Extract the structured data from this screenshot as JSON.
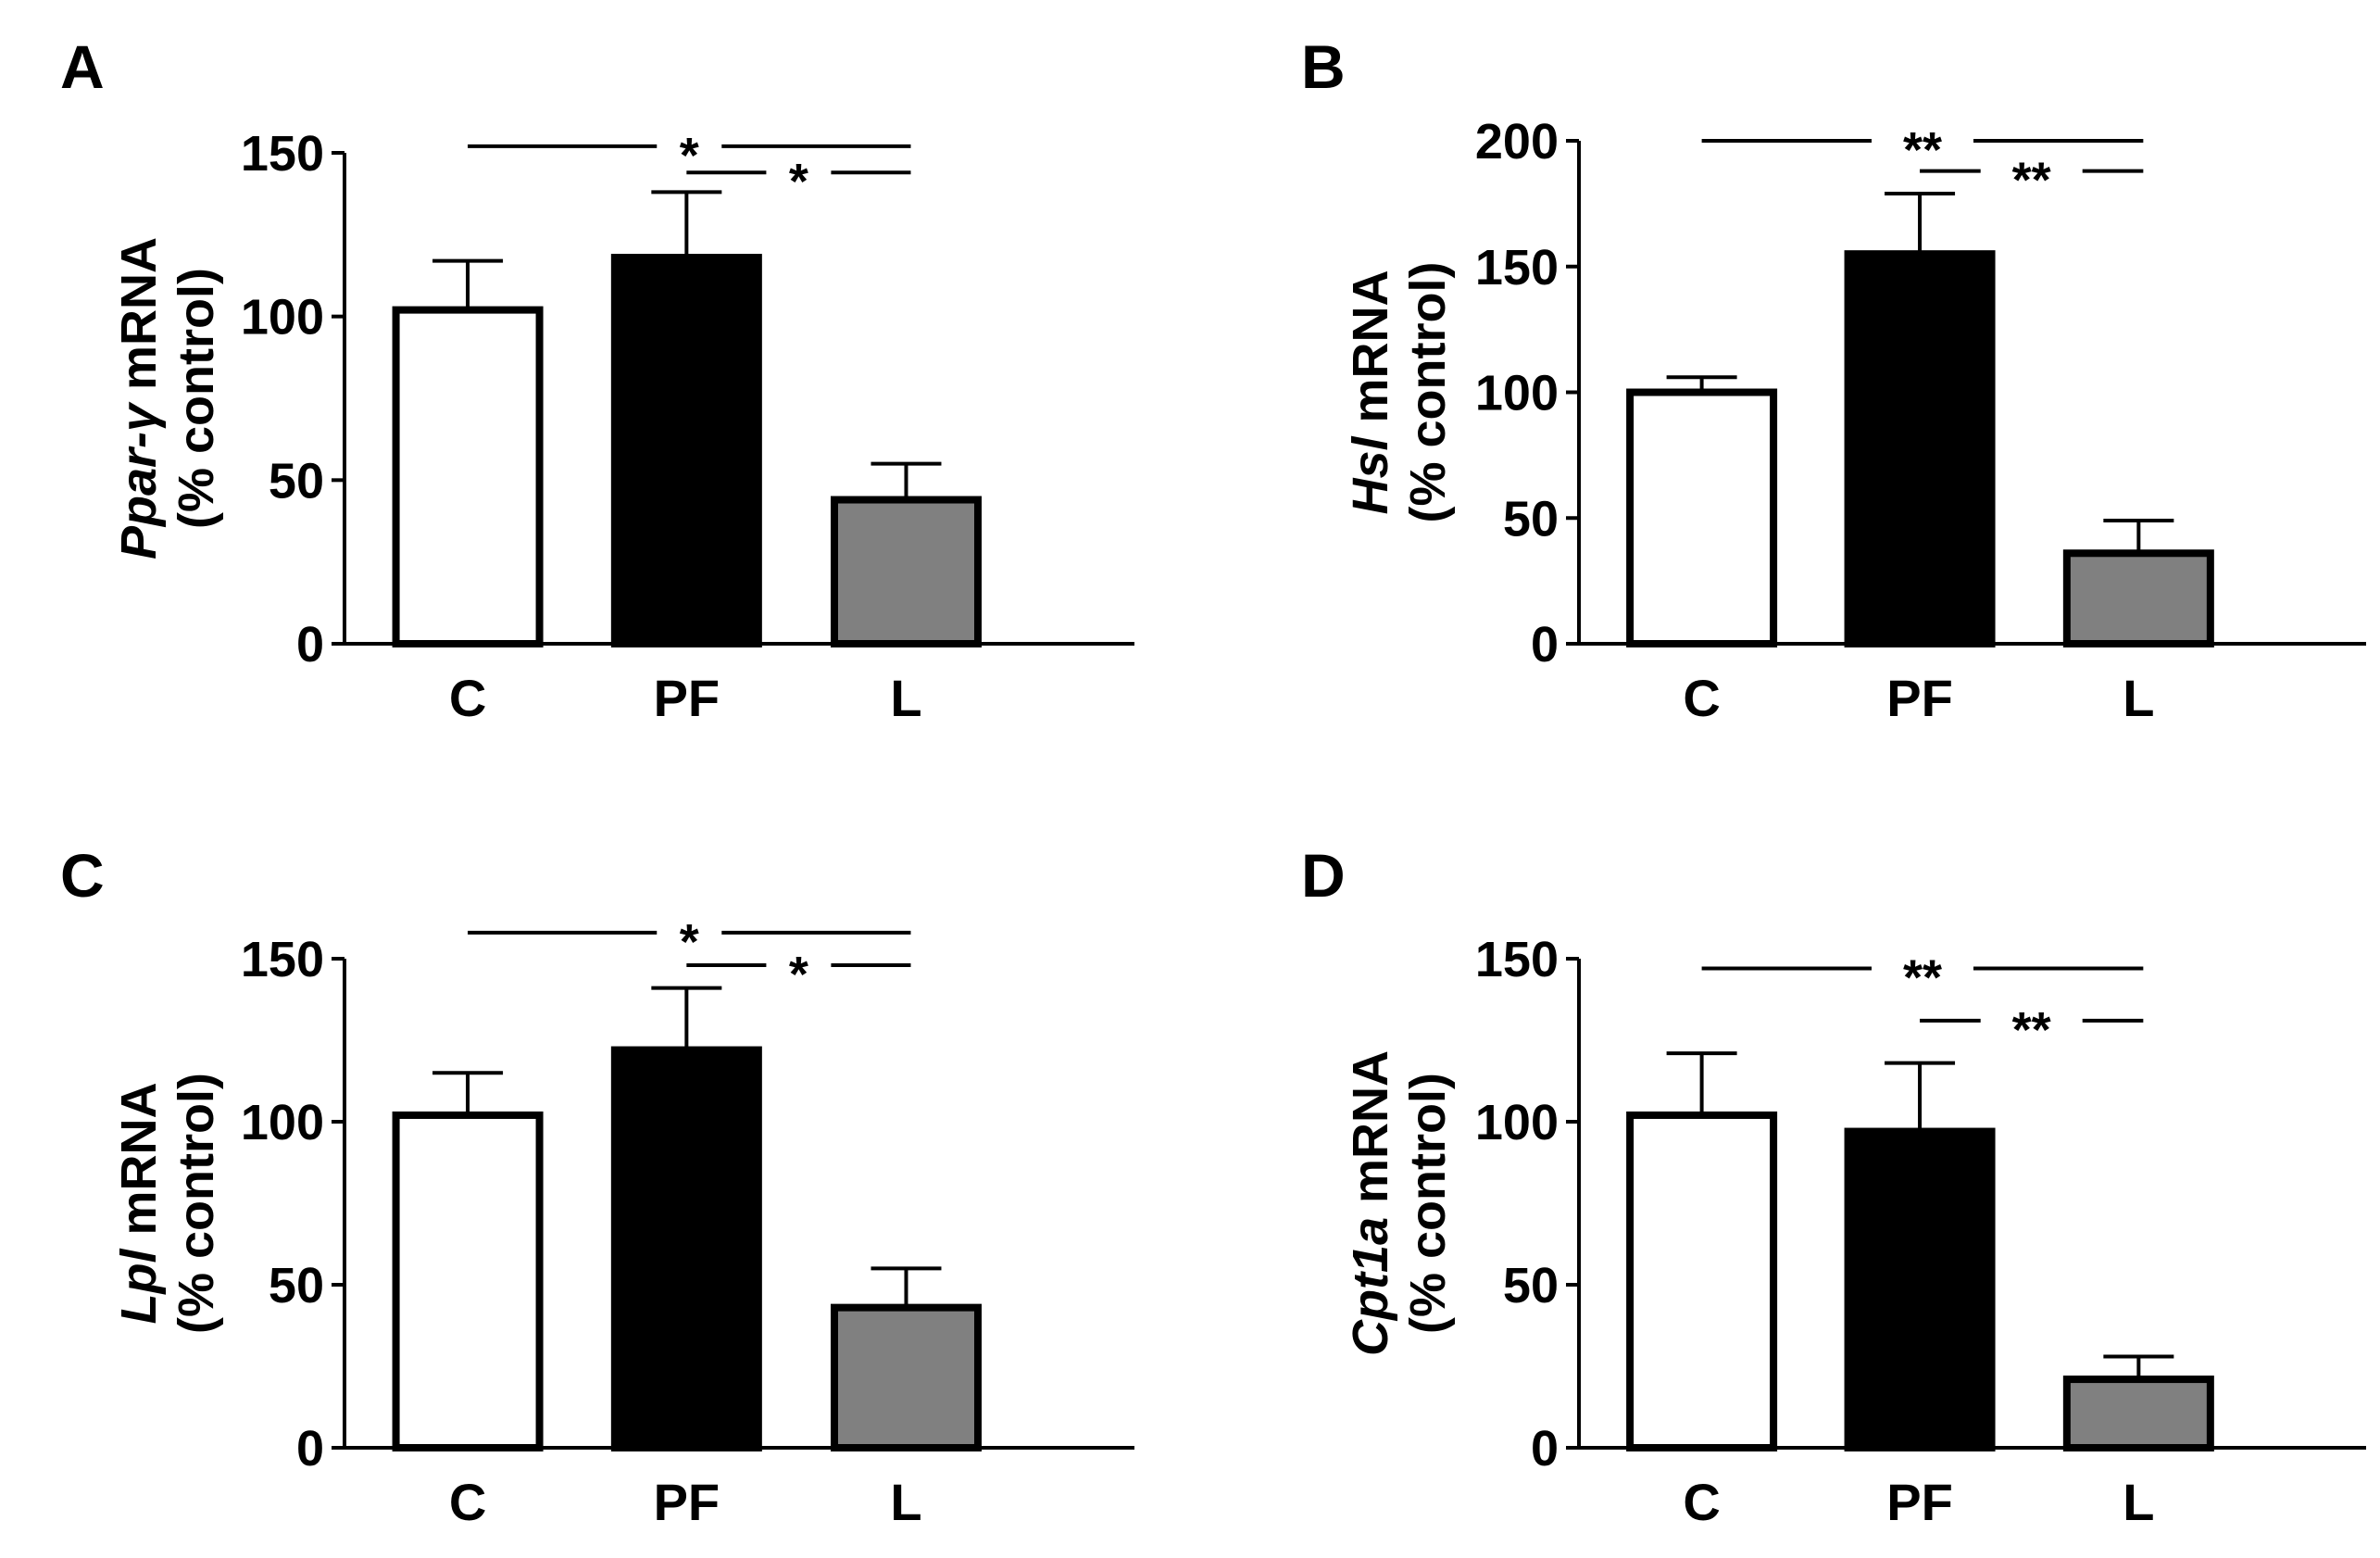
{
  "chart_data": [
    {
      "type": "bar",
      "panel_label": "A",
      "gene": "Ppar-γ",
      "ylabel_suffix": " mRNA",
      "ylabel_line2": "(% control)",
      "categories": [
        "C",
        "PF",
        "L"
      ],
      "values": [
        102,
        118,
        44
      ],
      "errors": [
        15,
        20,
        11
      ],
      "fills": [
        "#ffffff",
        "#000000",
        "#808080"
      ],
      "ylim": [
        0,
        150
      ],
      "yticks": [
        0,
        50,
        100,
        150
      ],
      "significance": [
        {
          "from": "C",
          "to": "L",
          "label": "*",
          "y": 152
        },
        {
          "from": "PF",
          "to": "L",
          "label": "*",
          "y": 144
        }
      ]
    },
    {
      "type": "bar",
      "panel_label": "B",
      "gene": "Hsl",
      "ylabel_suffix": " mRNA",
      "ylabel_line2": "(% control)",
      "categories": [
        "C",
        "PF",
        "L"
      ],
      "values": [
        100,
        155,
        36
      ],
      "errors": [
        6,
        24,
        13
      ],
      "fills": [
        "#ffffff",
        "#000000",
        "#808080"
      ],
      "ylim": [
        0,
        200
      ],
      "yticks": [
        0,
        50,
        100,
        150,
        200
      ],
      "significance": [
        {
          "from": "C",
          "to": "L",
          "label": "**",
          "y": 200
        },
        {
          "from": "PF",
          "to": "L",
          "label": "**",
          "y": 188
        }
      ]
    },
    {
      "type": "bar",
      "panel_label": "C",
      "gene": "Lpl",
      "ylabel_suffix": " mRNA",
      "ylabel_line2": "(% control)",
      "categories": [
        "C",
        "PF",
        "L"
      ],
      "values": [
        102,
        122,
        43
      ],
      "errors": [
        13,
        19,
        12
      ],
      "fills": [
        "#ffffff",
        "#000000",
        "#808080"
      ],
      "ylim": [
        0,
        150
      ],
      "yticks": [
        0,
        50,
        100,
        150
      ],
      "significance": [
        {
          "from": "C",
          "to": "L",
          "label": "*",
          "y": 158
        },
        {
          "from": "PF",
          "to": "L",
          "label": "*",
          "y": 148
        }
      ]
    },
    {
      "type": "bar",
      "panel_label": "D",
      "gene": "Cpt1a",
      "ylabel_suffix": " mRNA",
      "ylabel_line2": "(% control)",
      "categories": [
        "C",
        "PF",
        "L"
      ],
      "values": [
        102,
        97,
        21
      ],
      "errors": [
        19,
        21,
        7
      ],
      "fills": [
        "#ffffff",
        "#000000",
        "#808080"
      ],
      "ylim": [
        0,
        150
      ],
      "yticks": [
        0,
        50,
        100,
        150
      ],
      "significance": [
        {
          "from": "C",
          "to": "L",
          "label": "**",
          "y": 147
        },
        {
          "from": "PF",
          "to": "L",
          "label": "**",
          "y": 131
        }
      ]
    }
  ]
}
